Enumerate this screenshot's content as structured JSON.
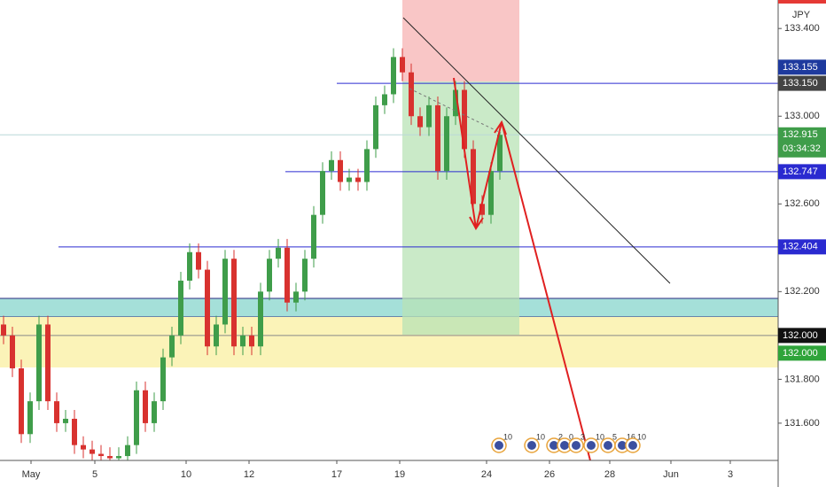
{
  "chart_data": {
    "type": "candlestick",
    "currency": "JPY",
    "countdown": "03:34:32",
    "x": [
      0,
      1,
      2,
      3,
      4,
      5,
      6,
      7,
      8,
      9,
      10,
      11,
      12,
      13,
      14,
      15,
      16,
      17,
      18,
      19,
      20,
      21,
      22,
      23,
      24,
      25,
      26,
      27,
      28,
      29,
      30,
      31,
      32,
      33,
      34,
      35,
      36,
      37,
      38,
      39,
      40,
      41,
      42,
      43,
      44,
      45,
      46,
      47,
      48,
      49,
      50,
      51,
      52,
      53,
      54,
      55,
      56
    ],
    "open": [
      132.05,
      132.0,
      131.85,
      131.55,
      131.7,
      132.05,
      131.7,
      131.6,
      131.62,
      131.5,
      131.48,
      131.46,
      131.45,
      131.44,
      131.45,
      131.5,
      131.75,
      131.6,
      131.7,
      131.9,
      132.0,
      132.25,
      132.38,
      132.3,
      131.95,
      132.05,
      132.35,
      131.95,
      132.0,
      131.95,
      132.2,
      132.35,
      132.4,
      132.15,
      132.2,
      132.35,
      132.55,
      132.75,
      132.8,
      132.7,
      132.72,
      132.7,
      132.85,
      133.05,
      133.1,
      133.27,
      133.2,
      133.0,
      132.95,
      133.05,
      132.75,
      133.0,
      133.12,
      132.85,
      132.6,
      132.55,
      132.75
    ],
    "high": [
      132.09,
      132.04,
      131.89,
      131.74,
      132.09,
      132.09,
      131.74,
      131.66,
      131.66,
      131.54,
      131.52,
      131.5,
      131.49,
      131.49,
      131.54,
      131.79,
      131.79,
      131.74,
      131.94,
      132.04,
      132.29,
      132.42,
      132.42,
      132.34,
      132.09,
      132.39,
      132.39,
      132.04,
      132.04,
      132.24,
      132.39,
      132.44,
      132.44,
      132.24,
      132.39,
      132.59,
      132.79,
      132.84,
      132.84,
      132.76,
      132.76,
      132.89,
      133.09,
      133.14,
      133.31,
      133.31,
      133.24,
      133.04,
      133.09,
      133.09,
      133.04,
      133.16,
      133.16,
      132.89,
      132.64,
      132.79,
      132.95
    ],
    "low": [
      131.96,
      131.81,
      131.51,
      131.51,
      131.66,
      131.66,
      131.56,
      131.56,
      131.46,
      131.44,
      131.42,
      131.41,
      131.4,
      131.4,
      131.41,
      131.46,
      131.56,
      131.56,
      131.66,
      131.86,
      131.96,
      132.21,
      132.26,
      131.91,
      131.91,
      132.01,
      131.91,
      131.91,
      131.91,
      131.91,
      132.16,
      132.31,
      132.11,
      132.11,
      132.16,
      132.31,
      132.51,
      132.71,
      132.66,
      132.66,
      132.66,
      132.66,
      132.81,
      133.01,
      133.06,
      133.16,
      132.96,
      132.91,
      132.91,
      132.71,
      132.71,
      132.96,
      132.81,
      132.56,
      132.51,
      132.51,
      132.71
    ],
    "close": [
      132.0,
      131.85,
      131.55,
      131.7,
      132.05,
      131.7,
      131.6,
      131.62,
      131.5,
      131.48,
      131.46,
      131.45,
      131.44,
      131.45,
      131.5,
      131.75,
      131.6,
      131.7,
      131.9,
      132.0,
      132.25,
      132.38,
      132.3,
      131.95,
      132.05,
      132.35,
      131.95,
      132.0,
      131.95,
      132.2,
      132.35,
      132.4,
      132.15,
      132.2,
      132.35,
      132.55,
      132.75,
      132.8,
      132.7,
      132.72,
      132.7,
      132.85,
      133.05,
      133.1,
      133.27,
      133.2,
      133.0,
      132.95,
      133.05,
      132.75,
      133.0,
      133.12,
      132.85,
      132.6,
      132.55,
      132.75,
      132.915
    ],
    "up_color": "#3f9d4a",
    "down_color": "#d8322f",
    "grid": false,
    "xlim": [
      -0.4,
      87.4
    ],
    "xticks": [
      {
        "value": 3.1,
        "label": "May"
      },
      {
        "value": 10.3,
        "label": "5"
      },
      {
        "value": 20.6,
        "label": "10"
      },
      {
        "value": 27.7,
        "label": "12"
      },
      {
        "value": 37.6,
        "label": "17"
      },
      {
        "value": 44.7,
        "label": "19"
      },
      {
        "value": 54.5,
        "label": "24"
      },
      {
        "value": 61.6,
        "label": "26"
      },
      {
        "value": 68.4,
        "label": "28"
      },
      {
        "value": 75.3,
        "label": "Jun"
      },
      {
        "value": 82,
        "label": "3"
      }
    ],
    "ylim": [
      131.43,
      133.53
    ],
    "yticks": [
      {
        "value": 133.4,
        "label": "133.400"
      },
      {
        "value": 133,
        "label": "133.000"
      },
      {
        "value": 132.6,
        "label": "132.600"
      },
      {
        "value": 132.2,
        "label": "132.200"
      },
      {
        "value": 131.8,
        "label": "131.800"
      },
      {
        "value": 131.6,
        "label": "131.600"
      }
    ],
    "levels": [
      {
        "value": 133.155,
        "label": "133.155",
        "color": "#1e3a9e"
      },
      {
        "value": 133.15,
        "label": "133.150",
        "color": "#444444"
      },
      {
        "value": 132.915,
        "label": "132.915",
        "color": "#3f9d4a"
      },
      {
        "value": 132.747,
        "label": "132.747",
        "color": "#2a2ad0"
      },
      {
        "value": 132.404,
        "label": "132.404",
        "color": "#2a2ad0"
      },
      {
        "value": 132,
        "label": "132.000",
        "color": "#111111"
      },
      {
        "value": 132,
        "label": "132.000",
        "color": "#2fa43a"
      }
    ],
    "events": [
      "10",
      "10",
      "2",
      "0",
      "3",
      "10",
      "5",
      "16",
      "10"
    ]
  }
}
